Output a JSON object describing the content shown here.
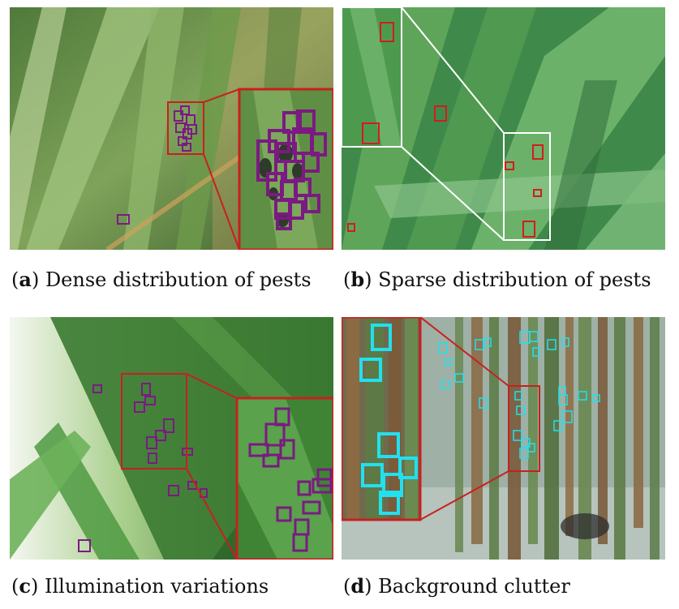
{
  "figure": {
    "panels": [
      {
        "id": "a",
        "letter": "a",
        "caption": "Dense distribution of pests",
        "box_color": "#7b1a82",
        "inset_border_color": "#c8201e"
      },
      {
        "id": "b",
        "letter": "b",
        "caption": "Sparse distribution of pests",
        "box_color": "#d11d1d",
        "inset_border_color": "#ffffff"
      },
      {
        "id": "c",
        "letter": "c",
        "caption": "Illumination variations",
        "box_color": "#7b1a82",
        "inset_border_color": "#c8201e"
      },
      {
        "id": "d",
        "letter": "d",
        "caption": "Background clutter",
        "box_color": "#22e0ee",
        "inset_border_color": "#c8201e"
      }
    ]
  }
}
